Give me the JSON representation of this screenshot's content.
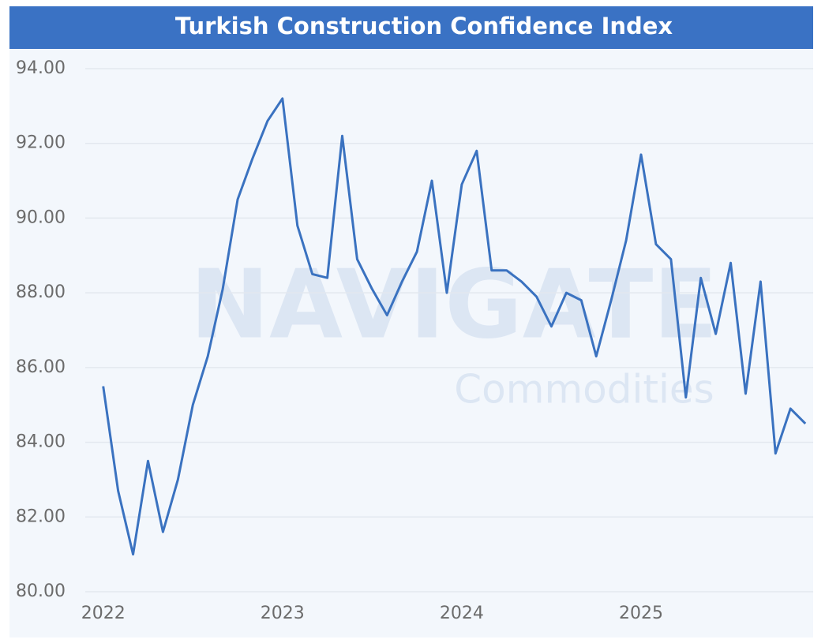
{
  "chart_data": {
    "type": "line",
    "title": "Turkish Construction Confidence Index",
    "watermark": [
      "NAVIGATE",
      "Commodities"
    ],
    "x": [
      2022,
      2022.0833,
      2022.1667,
      2022.25,
      2022.3333,
      2022.4167,
      2022.5,
      2022.5833,
      2022.6667,
      2022.75,
      2022.8333,
      2022.9167,
      2023,
      2023.0833,
      2023.1667,
      2023.25,
      2023.3333,
      2023.4167,
      2023.5,
      2023.5833,
      2023.6667,
      2023.75,
      2023.8333,
      2023.9167,
      2024,
      2024.0833,
      2024.1667,
      2024.25,
      2024.3333,
      2024.4167,
      2024.5,
      2024.5833,
      2024.6667,
      2024.75,
      2024.8333,
      2024.9167,
      2025,
      2025.0833,
      2025.1667,
      2025.25,
      2025.3333,
      2025.4167,
      2025.5,
      2025.5833,
      2025.6667,
      2025.75,
      2025.8333,
      2025.9167
    ],
    "values": [
      85.5,
      82.7,
      81.0,
      83.5,
      81.6,
      83.0,
      85.0,
      86.3,
      88.1,
      90.5,
      91.6,
      92.6,
      93.2,
      89.8,
      88.5,
      88.4,
      92.2,
      88.9,
      88.1,
      87.4,
      88.3,
      89.1,
      91.0,
      88.0,
      90.9,
      91.8,
      88.6,
      88.6,
      88.3,
      87.9,
      87.1,
      88.0,
      87.8,
      86.3,
      87.8,
      89.4,
      91.7,
      89.3,
      88.9,
      85.2,
      88.4,
      86.9,
      88.8,
      85.3,
      88.3,
      83.7,
      84.9,
      84.5
    ],
    "color": "#3a72c0",
    "xlim": [
      2021.9,
      2025.96
    ],
    "xticks": [
      2022,
      2023,
      2024,
      2025
    ],
    "ylim": [
      80,
      94
    ],
    "yticks": [
      {
        "value": 80,
        "label": "80.00"
      },
      {
        "value": 82,
        "label": "82.00"
      },
      {
        "value": 84,
        "label": "84.00"
      },
      {
        "value": 86,
        "label": "86.00"
      },
      {
        "value": 88,
        "label": "88.00"
      },
      {
        "value": 90,
        "label": "90.00"
      },
      {
        "value": 92,
        "label": "92.00"
      },
      {
        "value": 94,
        "label": "94.00"
      }
    ],
    "grid": true
  }
}
